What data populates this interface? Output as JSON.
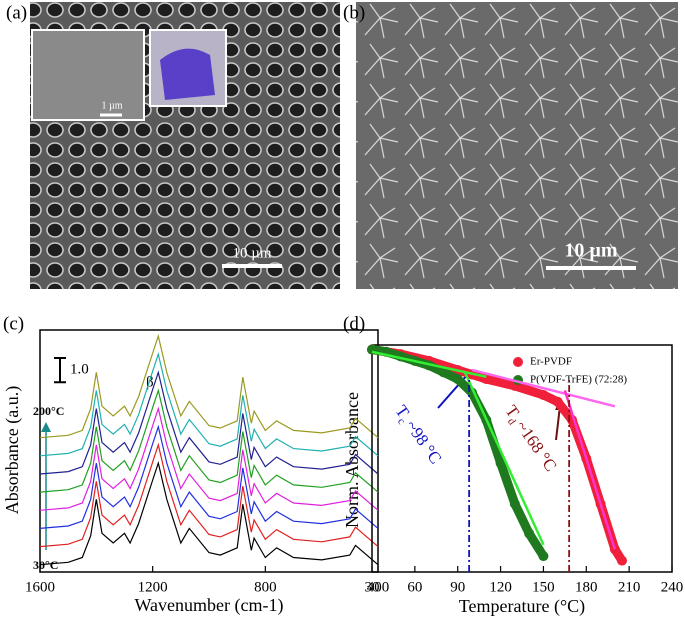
{
  "images": [
    {
      "label": "(a)",
      "scale_bar": "10 µm",
      "inset_scale_bar": "1 µm"
    },
    {
      "label": "(b)",
      "scale_bar": "10 µm"
    }
  ],
  "chart_data": [
    {
      "type": "line",
      "label": "(c)",
      "x_label": "Wavenumber (cm-1)",
      "y_label": "Absorbance (a.u.)",
      "xlim": [
        1600,
        400
      ],
      "xticks": [
        1600,
        1200,
        800,
        400
      ],
      "ylim": [
        0,
        10
      ],
      "scale_bar": {
        "value": 1,
        "label": "1.0"
      },
      "annotations": [
        "β",
        "200°C",
        "30°C"
      ],
      "x": [
        1600,
        1500,
        1450,
        1420,
        1400,
        1380,
        1340,
        1300,
        1280,
        1250,
        1200,
        1180,
        1150,
        1100,
        1070,
        1000,
        960,
        900,
        880,
        850,
        840,
        800,
        760,
        700,
        600,
        500,
        480,
        400
      ],
      "series": [
        {
          "color": "#000000",
          "values": [
            0.3,
            0.4,
            0.6,
            1.5,
            3.0,
            1.6,
            1.2,
            1.6,
            1.2,
            2.0,
            3.8,
            4.5,
            3.0,
            1.2,
            1.8,
            0.8,
            0.7,
            1.0,
            2.8,
            0.9,
            1.4,
            0.6,
            1.0,
            0.6,
            0.5,
            0.7,
            1.1,
            0.3
          ]
        },
        {
          "color": "#e02020",
          "values": [
            1.05,
            1.15,
            1.35,
            2.25,
            3.75,
            2.35,
            1.95,
            2.35,
            1.95,
            2.75,
            4.55,
            5.25,
            3.75,
            1.95,
            2.55,
            1.55,
            1.45,
            1.75,
            3.55,
            1.65,
            2.15,
            1.35,
            1.75,
            1.35,
            1.25,
            1.45,
            1.85,
            1.05
          ]
        },
        {
          "color": "#2030e0",
          "values": [
            1.8,
            1.9,
            2.1,
            3.0,
            4.5,
            3.1,
            2.7,
            3.1,
            2.7,
            3.5,
            5.3,
            6.0,
            4.5,
            2.7,
            3.3,
            2.3,
            2.2,
            2.5,
            4.3,
            2.4,
            2.9,
            2.1,
            2.5,
            2.1,
            2.0,
            2.2,
            2.6,
            1.8
          ]
        },
        {
          "color": "#e020e0",
          "values": [
            2.55,
            2.65,
            2.85,
            3.75,
            5.25,
            3.85,
            3.45,
            3.85,
            3.45,
            4.25,
            6.05,
            6.75,
            5.25,
            3.45,
            4.05,
            3.05,
            2.95,
            3.25,
            5.05,
            3.15,
            3.65,
            2.85,
            3.25,
            2.85,
            2.75,
            2.95,
            3.35,
            2.55
          ]
        },
        {
          "color": "#20a020",
          "values": [
            3.3,
            3.4,
            3.6,
            4.5,
            6.0,
            4.6,
            4.2,
            4.6,
            4.2,
            5.0,
            6.8,
            7.5,
            6.0,
            4.2,
            4.8,
            3.8,
            3.7,
            4.0,
            5.8,
            3.9,
            4.4,
            3.6,
            4.0,
            3.6,
            3.5,
            3.7,
            4.1,
            3.3
          ]
        },
        {
          "color": "#202090",
          "values": [
            4.05,
            4.15,
            4.35,
            5.25,
            6.75,
            5.35,
            4.95,
            5.35,
            4.95,
            5.75,
            7.55,
            8.25,
            6.75,
            4.95,
            5.55,
            4.55,
            4.45,
            4.75,
            6.55,
            4.65,
            5.15,
            4.35,
            4.75,
            4.35,
            4.25,
            4.45,
            4.85,
            4.05
          ]
        },
        {
          "color": "#20b0b0",
          "values": [
            4.8,
            4.9,
            5.1,
            6.0,
            7.5,
            6.1,
            5.7,
            6.1,
            5.7,
            6.5,
            8.3,
            9.0,
            7.5,
            5.7,
            6.3,
            5.3,
            5.2,
            5.5,
            7.3,
            5.4,
            5.9,
            5.1,
            5.5,
            5.1,
            5.0,
            5.2,
            5.6,
            4.8
          ]
        },
        {
          "color": "#9a9a20",
          "values": [
            5.55,
            5.65,
            5.85,
            6.75,
            8.25,
            6.85,
            6.45,
            6.85,
            6.45,
            7.25,
            9.05,
            9.75,
            8.25,
            6.45,
            7.05,
            6.05,
            5.95,
            6.25,
            8.05,
            6.15,
            6.65,
            5.85,
            6.25,
            5.85,
            5.75,
            5.95,
            6.35,
            5.55
          ]
        }
      ]
    },
    {
      "type": "scatter",
      "label": "(d)",
      "x_label": "Temperature (°C)",
      "y_label": "Norm. Absorbance",
      "xlim": [
        30,
        240
      ],
      "xticks": [
        30,
        60,
        90,
        120,
        150,
        180,
        210,
        240
      ],
      "ylim": [
        0,
        1
      ],
      "legend": "top-right",
      "series": [
        {
          "name": "Er-PVDF",
          "color": "#f0203a",
          "x": [
            30,
            50,
            70,
            90,
            100,
            110,
            130,
            150,
            160,
            170,
            180,
            190,
            200,
            205
          ],
          "values": [
            0.98,
            0.96,
            0.93,
            0.89,
            0.87,
            0.85,
            0.82,
            0.78,
            0.75,
            0.67,
            0.5,
            0.3,
            0.1,
            0.05
          ]
        },
        {
          "name": "P(VDF-TrFE) (72:28)",
          "color": "#1f7a1f",
          "x": [
            30,
            40,
            50,
            60,
            70,
            80,
            90,
            100,
            110,
            120,
            130,
            140,
            150
          ],
          "values": [
            0.98,
            0.97,
            0.95,
            0.93,
            0.91,
            0.88,
            0.85,
            0.79,
            0.67,
            0.48,
            0.3,
            0.17,
            0.07
          ]
        }
      ],
      "fit_lines": [
        {
          "color": "#33ee33",
          "x": [
            30,
            110
          ],
          "values": [
            0.97,
            0.86
          ]
        },
        {
          "color": "#33ee33",
          "x": [
            95,
            150
          ],
          "values": [
            0.88,
            0.12
          ]
        },
        {
          "color": "#ff66ee",
          "x": [
            100,
            200
          ],
          "values": [
            0.89,
            0.73
          ]
        },
        {
          "color": "#ff33cc",
          "x": [
            165,
            200
          ],
          "values": [
            0.8,
            0.1
          ]
        }
      ],
      "markers": [
        {
          "x": 98,
          "color": "#1010c0",
          "symbol": "T",
          "sub": "c",
          "text": "~98 °C"
        },
        {
          "x": 168,
          "color": "#8b1010",
          "symbol": "T",
          "sub": "d",
          "text": "~168 °C"
        }
      ]
    }
  ]
}
